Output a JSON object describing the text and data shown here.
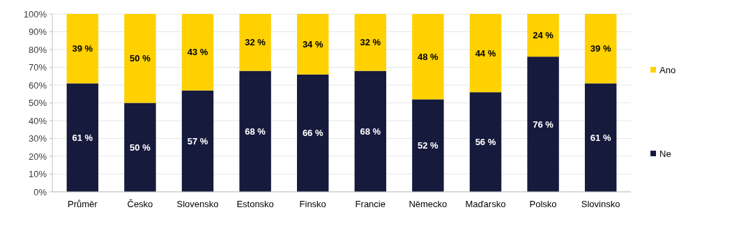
{
  "chart_data": {
    "type": "bar",
    "stacked": true,
    "categories": [
      "Průměr",
      "Česko",
      "Slovensko",
      "Estonsko",
      "Finsko",
      "Francie",
      "Německo",
      "Maďarsko",
      "Polsko",
      "Slovinsko"
    ],
    "series": [
      {
        "name": "Ne",
        "color": "#161a3c",
        "values": [
          61,
          50,
          57,
          68,
          66,
          68,
          52,
          56,
          76,
          61
        ],
        "value_labels": [
          "61 %",
          "50 %",
          "57 %",
          "68 %",
          "66 %",
          "68 %",
          "52 %",
          "56 %",
          "76 %",
          "61 %"
        ]
      },
      {
        "name": "Ano",
        "color": "#ffd100",
        "values": [
          39,
          50,
          43,
          32,
          34,
          32,
          48,
          44,
          24,
          39
        ],
        "value_labels": [
          "39 %",
          "50 %",
          "43 %",
          "32 %",
          "34 %",
          "32 %",
          "48 %",
          "44 %",
          "24 %",
          "39 %"
        ]
      }
    ],
    "ylim": [
      0,
      100
    ],
    "yticks": [
      {
        "value": 0,
        "label": "0%"
      },
      {
        "value": 10,
        "label": "10%"
      },
      {
        "value": 20,
        "label": "20%"
      },
      {
        "value": 30,
        "label": "30%"
      },
      {
        "value": 40,
        "label": "40%"
      },
      {
        "value": 50,
        "label": "50%"
      },
      {
        "value": 60,
        "label": "60%"
      },
      {
        "value": 70,
        "label": "70%"
      },
      {
        "value": 80,
        "label": "80%"
      },
      {
        "value": 90,
        "label": "90%"
      },
      {
        "value": 100,
        "label": "100%"
      }
    ],
    "grid": "y",
    "legend": "right"
  }
}
